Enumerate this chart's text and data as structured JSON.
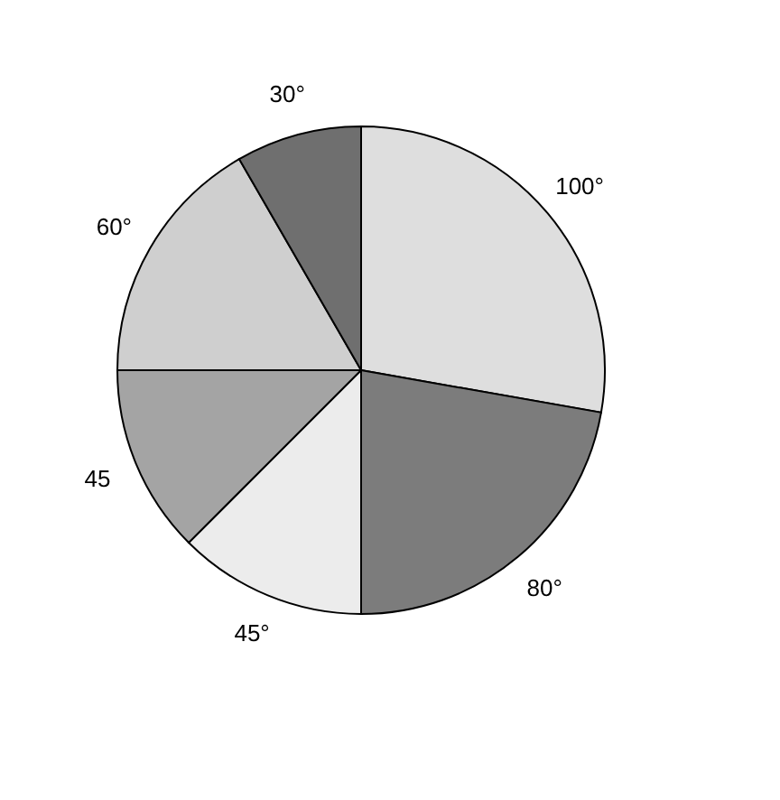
{
  "chart_data": {
    "type": "pie",
    "categories": [
      null,
      null,
      null,
      null,
      null,
      null
    ],
    "values": [
      100,
      80,
      45,
      45,
      60,
      30
    ],
    "value_labels": [
      "100°",
      "80°",
      "45°",
      "45",
      "60°",
      "30°"
    ],
    "colors": [
      "#dedede",
      "#7c7c7c",
      "#ececec",
      "#a4a4a4",
      "#cfcfcf",
      "#6f6f6f"
    ],
    "legend": false
  }
}
